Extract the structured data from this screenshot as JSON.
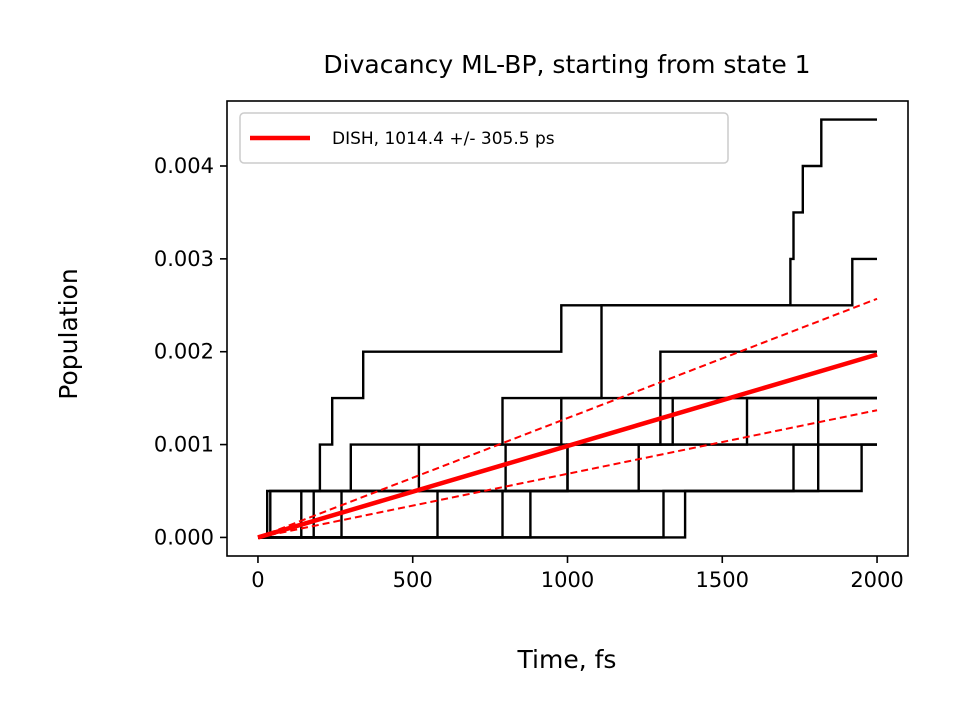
{
  "chart_data": {
    "type": "line",
    "title": "Divacancy ML-BP, starting from state 1",
    "xlabel": "Time, fs",
    "ylabel": "Population",
    "xlim": [
      -100,
      2100
    ],
    "ylim": [
      -0.0002,
      0.0047
    ],
    "xticks": [
      0,
      500,
      1000,
      1500,
      2000
    ],
    "xtick_labels": [
      "0",
      "500",
      "1000",
      "1500",
      "2000"
    ],
    "yticks": [
      0.0,
      0.001,
      0.002,
      0.003,
      0.004
    ],
    "ytick_labels": [
      "0.000",
      "0.001",
      "0.002",
      "0.003",
      "0.004"
    ],
    "grid": false,
    "legend_position": "top-left",
    "legend": [
      {
        "label": "DISH,  1014.4 +/-  305.5 ps",
        "color": "#ff0000"
      }
    ],
    "step_series": [
      {
        "color": "#000000",
        "points": [
          [
            0,
            0
          ],
          [
            30,
            0
          ],
          [
            30,
            0.0005
          ],
          [
            200,
            0.0005
          ],
          [
            200,
            0.001
          ],
          [
            240,
            0.001
          ],
          [
            240,
            0.0015
          ],
          [
            340,
            0.0015
          ],
          [
            340,
            0.002
          ],
          [
            980,
            0.002
          ],
          [
            980,
            0.0025
          ],
          [
            1720,
            0.0025
          ],
          [
            1720,
            0.003
          ],
          [
            1730,
            0.003
          ],
          [
            1730,
            0.0035
          ],
          [
            1760,
            0.0035
          ],
          [
            1760,
            0.004
          ],
          [
            1820,
            0.004
          ],
          [
            1820,
            0.0045
          ],
          [
            2000,
            0.0045
          ]
        ]
      },
      {
        "color": "#000000",
        "points": [
          [
            0,
            0
          ],
          [
            140,
            0
          ],
          [
            140,
            0.0005
          ],
          [
            300,
            0.0005
          ],
          [
            300,
            0.001
          ],
          [
            790,
            0.001
          ],
          [
            790,
            0.0015
          ],
          [
            1110,
            0.0015
          ],
          [
            1110,
            0.0025
          ],
          [
            1920,
            0.0025
          ],
          [
            1920,
            0.003
          ],
          [
            2000,
            0.003
          ]
        ]
      },
      {
        "color": "#000000",
        "points": [
          [
            0,
            0
          ],
          [
            180,
            0
          ],
          [
            180,
            0.0005
          ],
          [
            800,
            0.0005
          ],
          [
            800,
            0.001
          ],
          [
            1300,
            0.001
          ],
          [
            1300,
            0.002
          ],
          [
            2000,
            0.002
          ]
        ]
      },
      {
        "color": "#000000",
        "points": [
          [
            0,
            0
          ],
          [
            40,
            0
          ],
          [
            40,
            0.0005
          ],
          [
            520,
            0.0005
          ],
          [
            520,
            0.001
          ],
          [
            980,
            0.001
          ],
          [
            980,
            0.0015
          ],
          [
            2000,
            0.0015
          ]
        ]
      },
      {
        "color": "#000000",
        "points": [
          [
            0,
            0
          ],
          [
            790,
            0
          ],
          [
            790,
            0.0005
          ],
          [
            1000,
            0.0005
          ],
          [
            1000,
            0.001
          ],
          [
            1580,
            0.001
          ],
          [
            1580,
            0.0015
          ],
          [
            2000,
            0.0015
          ]
        ]
      },
      {
        "color": "#000000",
        "points": [
          [
            0,
            0
          ],
          [
            580,
            0
          ],
          [
            580,
            0.0005
          ],
          [
            1230,
            0.0005
          ],
          [
            1230,
            0.001
          ],
          [
            2000,
            0.001
          ]
        ]
      },
      {
        "color": "#000000",
        "points": [
          [
            0,
            0
          ],
          [
            1310,
            0
          ],
          [
            1310,
            0.0005
          ],
          [
            1730,
            0.0005
          ],
          [
            1730,
            0.001
          ],
          [
            2000,
            0.001
          ]
        ]
      },
      {
        "color": "#000000",
        "points": [
          [
            0,
            0
          ],
          [
            1380,
            0
          ],
          [
            1380,
            0.0005
          ],
          [
            1950,
            0.0005
          ],
          [
            1950,
            0.001
          ],
          [
            2000,
            0.001
          ]
        ]
      },
      {
        "color": "#000000",
        "points": [
          [
            0,
            0
          ],
          [
            270,
            0
          ],
          [
            270,
            0.0005
          ],
          [
            1810,
            0.0005
          ],
          [
            1810,
            0.0015
          ],
          [
            2000,
            0.0015
          ]
        ]
      },
      {
        "color": "#000000",
        "points": [
          [
            0,
            0
          ],
          [
            880,
            0
          ],
          [
            880,
            0.0005
          ],
          [
            1000,
            0.0005
          ],
          [
            1000,
            0.001
          ],
          [
            1340,
            0.001
          ],
          [
            1340,
            0.0015
          ],
          [
            2000,
            0.0015
          ]
        ]
      }
    ],
    "fit_lines": [
      {
        "name": "DISH,  1014.4 +/-  305.5 ps",
        "color": "#ff0000",
        "style": "solid",
        "x": [
          0,
          2000
        ],
        "y": [
          0,
          0.00197
        ]
      },
      {
        "color": "#ff0000",
        "style": "dashed",
        "x": [
          0,
          2000
        ],
        "y": [
          0,
          0.00257
        ]
      },
      {
        "color": "#ff0000",
        "style": "dashed",
        "x": [
          0,
          2000
        ],
        "y": [
          0,
          0.00137
        ]
      }
    ]
  }
}
